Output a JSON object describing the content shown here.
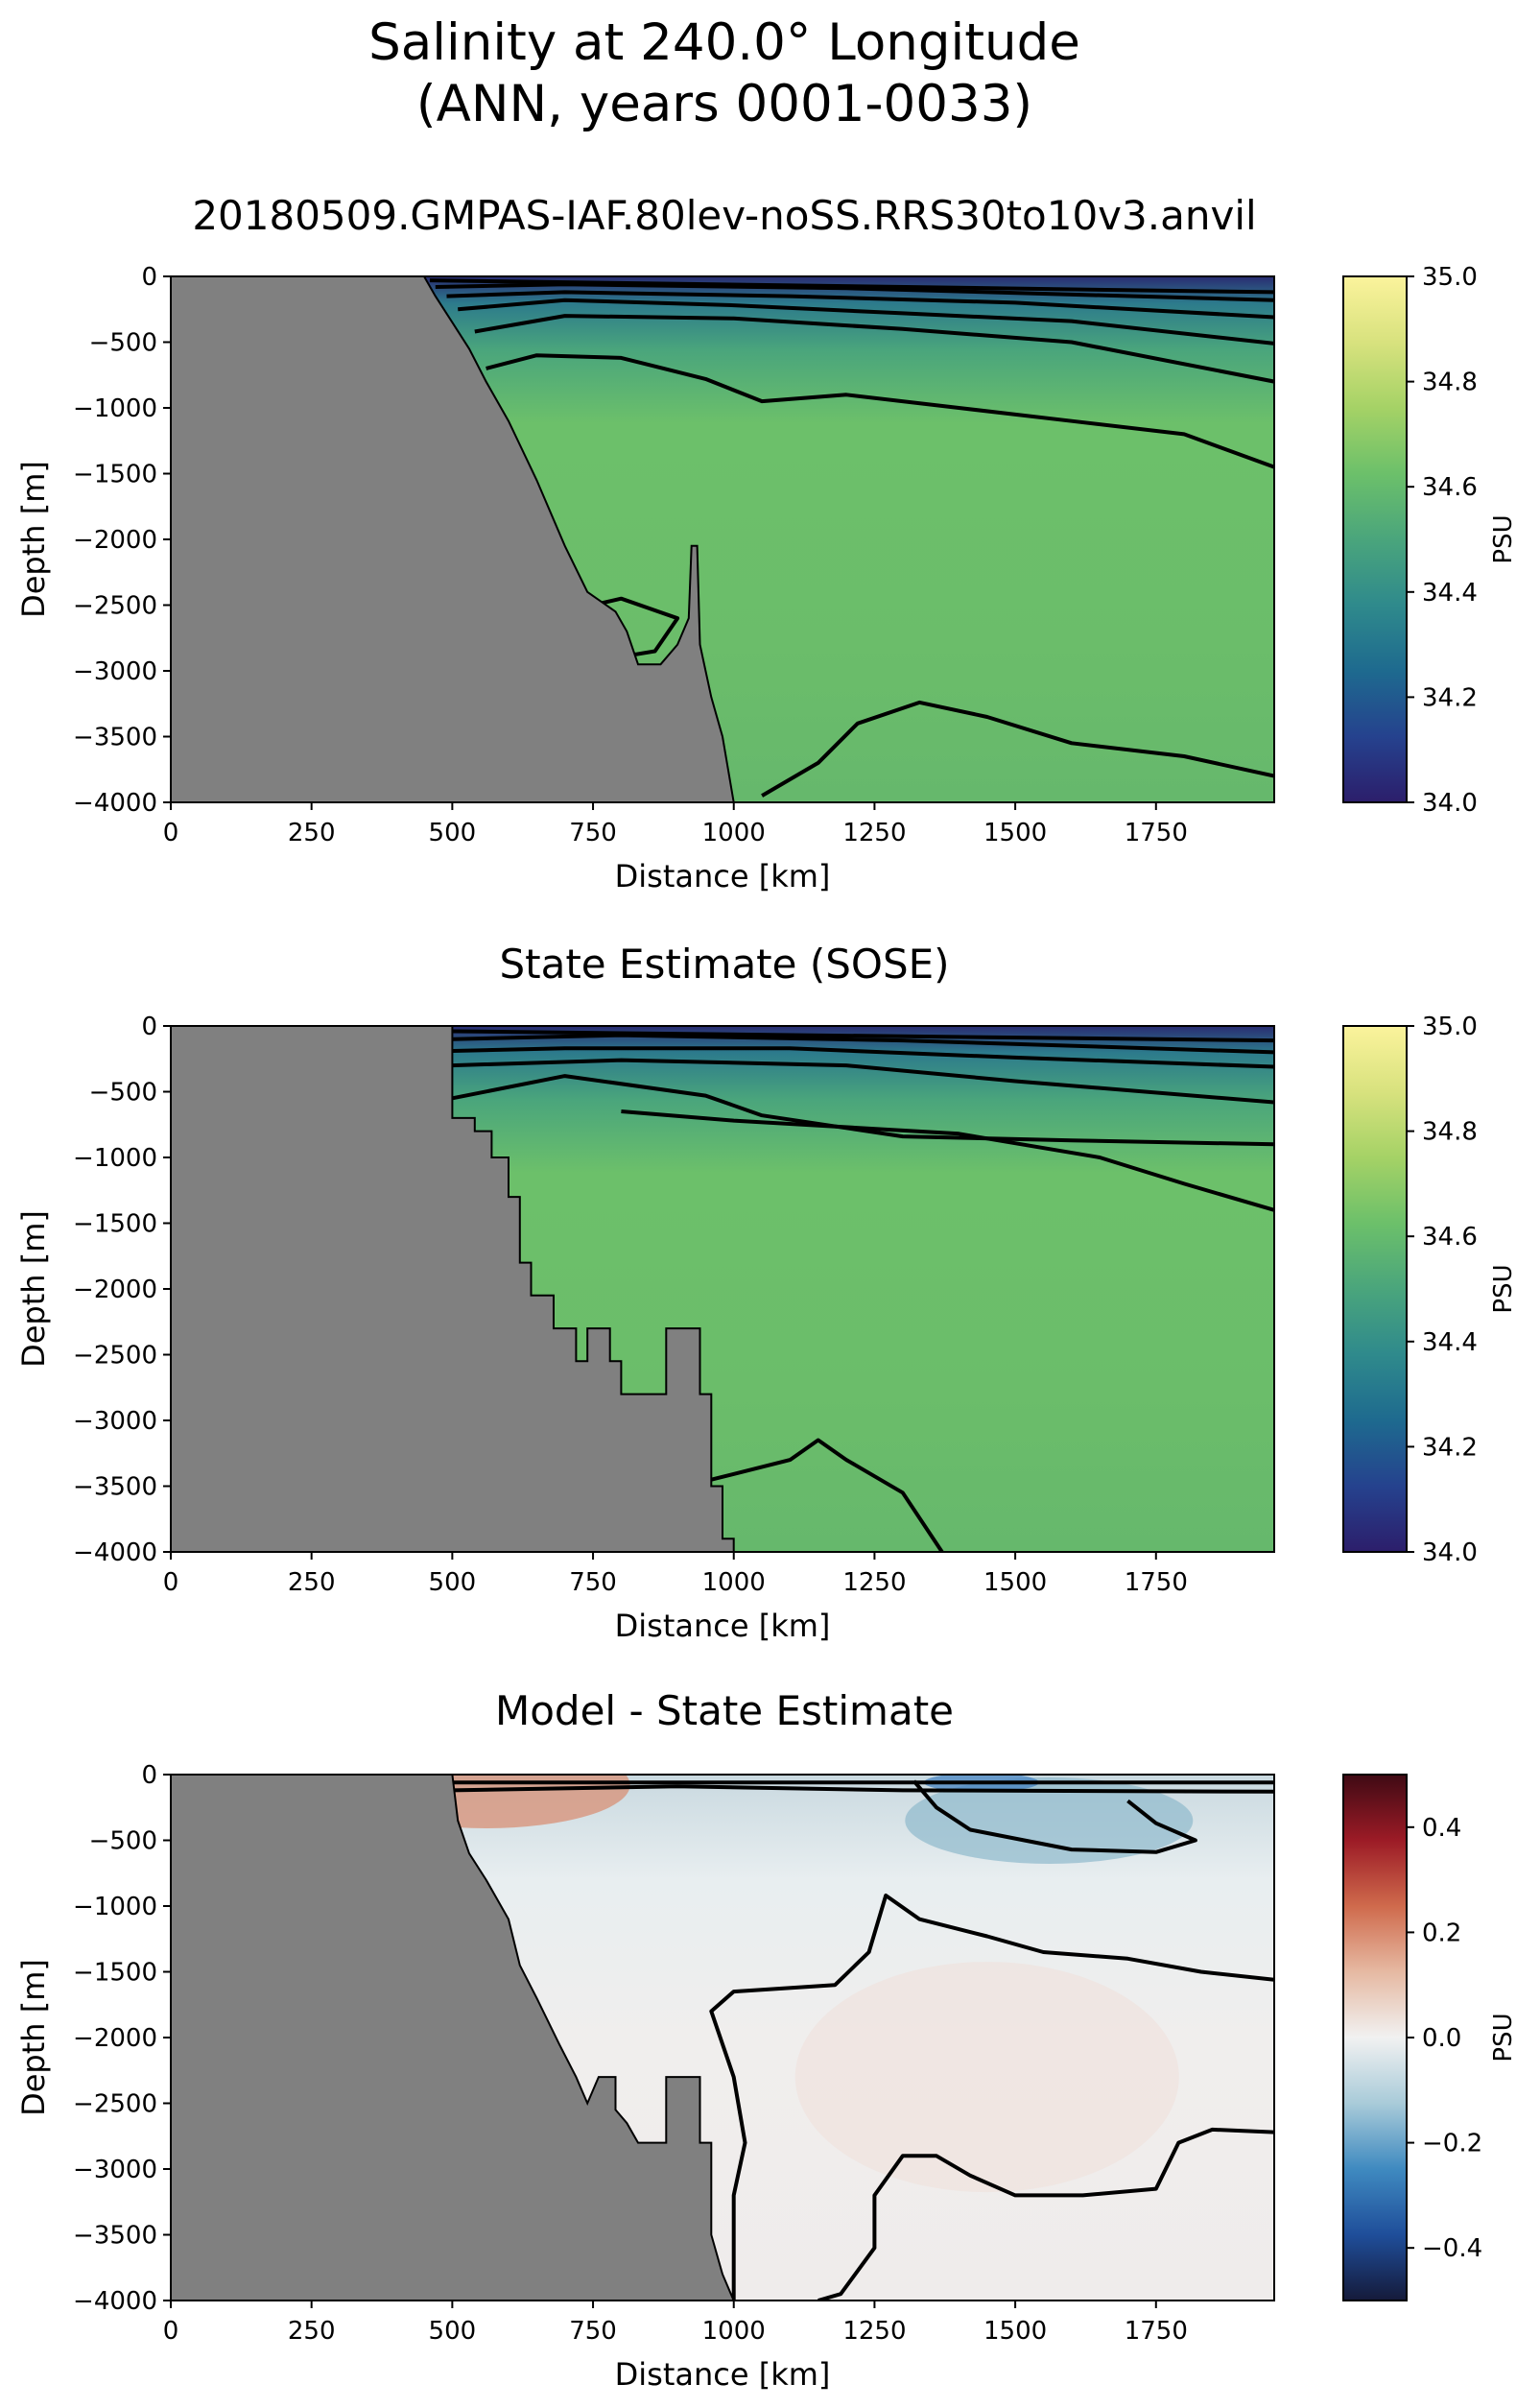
{
  "figure": {
    "title_line1": "Salinity at 240.0° Longitude",
    "title_line2": "(ANN, years 0001-0033)"
  },
  "colors": {
    "land": "#808080",
    "contour": "#000000",
    "salinity_colormap": [
      "#2c1e6b",
      "#25428e",
      "#1e6a8f",
      "#2f8a8c",
      "#4aa57c",
      "#6cc06a",
      "#a5d266",
      "#d8e27e",
      "#fbf39c"
    ],
    "difference_colormap": [
      "#151a3a",
      "#1f4e9a",
      "#3f8ac0",
      "#a9cbd9",
      "#f1f1f1",
      "#e6b9a2",
      "#cf6a4c",
      "#9c1b26",
      "#3f0a14"
    ]
  },
  "chart_data": [
    {
      "type": "heatmap",
      "title": "20180509.GMPAS-IAF.80lev-noSS.RRS30to10v3.anvil",
      "xlabel": "Distance [km]",
      "ylabel": "Depth [m]",
      "xlim": [
        0,
        1960
      ],
      "ylim": [
        -4000,
        0
      ],
      "xticks": [
        "0",
        "250",
        "500",
        "750",
        "1000",
        "1250",
        "1500",
        "1750"
      ],
      "yticks": [
        "0",
        "−500",
        "−1000",
        "−1500",
        "−2000",
        "−2500",
        "−3000",
        "−3500",
        "−4000"
      ],
      "colorbar": {
        "label": "PSU",
        "range": [
          34.0,
          35.0
        ],
        "ticks": [
          "34.0",
          "34.2",
          "34.4",
          "34.6",
          "34.8",
          "35.0"
        ]
      },
      "field_description": {
        "surface_psu": 34.05,
        "interior_psu": 34.68,
        "deep_psu": 34.66
      },
      "bathymetry": [
        [
          0,
          0
        ],
        [
          450,
          0
        ],
        [
          470,
          -150
        ],
        [
          500,
          -350
        ],
        [
          530,
          -550
        ],
        [
          560,
          -800
        ],
        [
          600,
          -1100
        ],
        [
          650,
          -1550
        ],
        [
          700,
          -2050
        ],
        [
          740,
          -2400
        ],
        [
          790,
          -2550
        ],
        [
          810,
          -2700
        ],
        [
          830,
          -2950
        ],
        [
          870,
          -2950
        ],
        [
          900,
          -2800
        ],
        [
          920,
          -2600
        ],
        [
          925,
          -2050
        ],
        [
          935,
          -2050
        ],
        [
          940,
          -2800
        ],
        [
          960,
          -3200
        ],
        [
          980,
          -3500
        ],
        [
          1000,
          -4000
        ]
      ],
      "contours": [
        [
          [
            460,
            -30
          ],
          [
            1960,
            -120
          ]
        ],
        [
          [
            470,
            -80
          ],
          [
            700,
            -60
          ],
          [
            1200,
            -90
          ],
          [
            1960,
            -180
          ]
        ],
        [
          [
            490,
            -150
          ],
          [
            700,
            -120
          ],
          [
            1100,
            -150
          ],
          [
            1500,
            -200
          ],
          [
            1960,
            -310
          ]
        ],
        [
          [
            510,
            -250
          ],
          [
            700,
            -180
          ],
          [
            1000,
            -220
          ],
          [
            1300,
            -280
          ],
          [
            1600,
            -340
          ],
          [
            1960,
            -510
          ]
        ],
        [
          [
            540,
            -420
          ],
          [
            700,
            -300
          ],
          [
            1000,
            -320
          ],
          [
            1300,
            -400
          ],
          [
            1600,
            -500
          ],
          [
            1960,
            -800
          ]
        ],
        [
          [
            560,
            -700
          ],
          [
            650,
            -600
          ],
          [
            800,
            -620
          ],
          [
            950,
            -780
          ],
          [
            1050,
            -950
          ],
          [
            1200,
            -900
          ],
          [
            1400,
            -1000
          ],
          [
            1600,
            -1100
          ],
          [
            1800,
            -1200
          ],
          [
            1960,
            -1450
          ]
        ],
        [
          [
            750,
            -2500
          ],
          [
            800,
            -2450
          ],
          [
            900,
            -2600
          ],
          [
            860,
            -2850
          ],
          [
            790,
            -2900
          ],
          [
            760,
            -2600
          ]
        ],
        [
          [
            1050,
            -3950
          ],
          [
            1150,
            -3700
          ],
          [
            1220,
            -3400
          ],
          [
            1330,
            -3240
          ],
          [
            1450,
            -3350
          ],
          [
            1600,
            -3550
          ],
          [
            1800,
            -3650
          ],
          [
            1960,
            -3800
          ]
        ]
      ]
    },
    {
      "type": "heatmap",
      "title": "State Estimate (SOSE)",
      "xlabel": "Distance [km]",
      "ylabel": "Depth [m]",
      "xlim": [
        0,
        1960
      ],
      "ylim": [
        -4000,
        0
      ],
      "xticks": [
        "0",
        "250",
        "500",
        "750",
        "1000",
        "1250",
        "1500",
        "1750"
      ],
      "yticks": [
        "0",
        "−500",
        "−1000",
        "−1500",
        "−2000",
        "−2500",
        "−3000",
        "−3500",
        "−4000"
      ],
      "colorbar": {
        "label": "PSU",
        "range": [
          34.0,
          35.0
        ],
        "ticks": [
          "34.0",
          "34.2",
          "34.4",
          "34.6",
          "34.8",
          "35.0"
        ]
      },
      "field_description": {
        "surface_psu": 34.05,
        "interior_psu": 34.72,
        "deep_psu": 34.66
      },
      "bathymetry": [
        [
          0,
          0
        ],
        [
          500,
          0
        ],
        [
          500,
          -700
        ],
        [
          540,
          -700
        ],
        [
          540,
          -800
        ],
        [
          570,
          -800
        ],
        [
          570,
          -1000
        ],
        [
          600,
          -1000
        ],
        [
          600,
          -1300
        ],
        [
          620,
          -1300
        ],
        [
          620,
          -1800
        ],
        [
          640,
          -1800
        ],
        [
          640,
          -2050
        ],
        [
          680,
          -2050
        ],
        [
          680,
          -2300
        ],
        [
          720,
          -2300
        ],
        [
          720,
          -2550
        ],
        [
          740,
          -2550
        ],
        [
          740,
          -2300
        ],
        [
          780,
          -2300
        ],
        [
          780,
          -2550
        ],
        [
          800,
          -2550
        ],
        [
          800,
          -2800
        ],
        [
          880,
          -2800
        ],
        [
          880,
          -2300
        ],
        [
          940,
          -2300
        ],
        [
          940,
          -2800
        ],
        [
          960,
          -2800
        ],
        [
          960,
          -3500
        ],
        [
          980,
          -3500
        ],
        [
          980,
          -3900
        ],
        [
          1000,
          -3900
        ],
        [
          1000,
          -4000
        ]
      ],
      "contours": [
        [
          [
            500,
            -40
          ],
          [
            1960,
            -110
          ]
        ],
        [
          [
            500,
            -100
          ],
          [
            800,
            -70
          ],
          [
            1300,
            -110
          ],
          [
            1960,
            -200
          ]
        ],
        [
          [
            500,
            -190
          ],
          [
            700,
            -170
          ],
          [
            1100,
            -170
          ],
          [
            1500,
            -240
          ],
          [
            1960,
            -310
          ]
        ],
        [
          [
            500,
            -300
          ],
          [
            800,
            -260
          ],
          [
            1200,
            -300
          ],
          [
            1500,
            -420
          ],
          [
            1960,
            -580
          ]
        ],
        [
          [
            500,
            -550
          ],
          [
            700,
            -380
          ],
          [
            950,
            -530
          ],
          [
            1050,
            -680
          ],
          [
            1300,
            -840
          ],
          [
            1600,
            -870
          ],
          [
            1960,
            -900
          ]
        ],
        [
          [
            800,
            -650
          ],
          [
            1000,
            -720
          ],
          [
            1400,
            -820
          ],
          [
            1650,
            -1000
          ],
          [
            1800,
            -1200
          ],
          [
            1960,
            -1400
          ]
        ],
        [
          [
            960,
            -3450
          ],
          [
            1100,
            -3300
          ],
          [
            1150,
            -3150
          ],
          [
            1200,
            -3300
          ],
          [
            1300,
            -3550
          ],
          [
            1370,
            -4000
          ]
        ]
      ]
    },
    {
      "type": "heatmap",
      "title": "Model - State Estimate",
      "xlabel": "Distance [km]",
      "ylabel": "Depth [m]",
      "xlim": [
        0,
        1960
      ],
      "ylim": [
        -4000,
        0
      ],
      "xticks": [
        "0",
        "250",
        "500",
        "750",
        "1000",
        "1250",
        "1500",
        "1750"
      ],
      "yticks": [
        "0",
        "−500",
        "−1000",
        "−1500",
        "−2000",
        "−2500",
        "−3000",
        "−3500",
        "−4000"
      ],
      "colorbar": {
        "label": "PSU",
        "range": [
          -0.5,
          0.5
        ],
        "ticks": [
          "−0.4",
          "−0.2",
          "0.0",
          "0.2",
          "0.4"
        ]
      },
      "field_description": {
        "near_zero_background": 0.0,
        "blue_anomaly_center_psu": -0.12,
        "surface_min_psu": -0.35,
        "surface_max_psu": 0.2
      },
      "bathymetry": [
        [
          0,
          0
        ],
        [
          500,
          0
        ],
        [
          510,
          -350
        ],
        [
          530,
          -600
        ],
        [
          560,
          -800
        ],
        [
          600,
          -1100
        ],
        [
          620,
          -1450
        ],
        [
          650,
          -1700
        ],
        [
          690,
          -2050
        ],
        [
          720,
          -2300
        ],
        [
          740,
          -2500
        ],
        [
          760,
          -2300
        ],
        [
          790,
          -2300
        ],
        [
          790,
          -2550
        ],
        [
          810,
          -2650
        ],
        [
          830,
          -2800
        ],
        [
          880,
          -2800
        ],
        [
          880,
          -2300
        ],
        [
          940,
          -2300
        ],
        [
          940,
          -2800
        ],
        [
          960,
          -2800
        ],
        [
          960,
          -3500
        ],
        [
          980,
          -3800
        ],
        [
          1000,
          -4000
        ]
      ],
      "contours": [
        [
          [
            500,
            -60
          ],
          [
            1960,
            -60
          ]
        ],
        [
          [
            500,
            -120
          ],
          [
            900,
            -90
          ],
          [
            1300,
            -120
          ],
          [
            1960,
            -130
          ]
        ],
        [
          [
            1320,
            -50
          ],
          [
            1360,
            -250
          ],
          [
            1420,
            -420
          ],
          [
            1600,
            -570
          ],
          [
            1750,
            -590
          ],
          [
            1820,
            -500
          ],
          [
            1750,
            -370
          ],
          [
            1700,
            -200
          ]
        ],
        [
          [
            1960,
            -1560
          ],
          [
            1830,
            -1500
          ],
          [
            1700,
            -1400
          ],
          [
            1550,
            -1350
          ],
          [
            1450,
            -1230
          ],
          [
            1330,
            -1100
          ],
          [
            1270,
            -920
          ],
          [
            1240,
            -1350
          ],
          [
            1180,
            -1600
          ],
          [
            1000,
            -1650
          ],
          [
            960,
            -1800
          ],
          [
            1000,
            -2300
          ],
          [
            1020,
            -2800
          ],
          [
            1000,
            -3200
          ],
          [
            1000,
            -3500
          ],
          [
            1000,
            -4000
          ]
        ],
        [
          [
            1960,
            -2720
          ],
          [
            1850,
            -2700
          ],
          [
            1790,
            -2800
          ],
          [
            1750,
            -3150
          ],
          [
            1620,
            -3200
          ],
          [
            1500,
            -3200
          ],
          [
            1420,
            -3050
          ],
          [
            1360,
            -2900
          ],
          [
            1300,
            -2900
          ],
          [
            1250,
            -3200
          ],
          [
            1250,
            -3600
          ],
          [
            1190,
            -3950
          ],
          [
            1150,
            -4000
          ]
        ]
      ],
      "anomalies": [
        {
          "x": 1560,
          "y": -350,
          "value": -0.12
        },
        {
          "x": 1450,
          "y": -2300,
          "value": 0.02
        },
        {
          "x": 560,
          "y": -80,
          "value": 0.15
        },
        {
          "x": 1440,
          "y": -60,
          "value": -0.3
        }
      ]
    }
  ]
}
